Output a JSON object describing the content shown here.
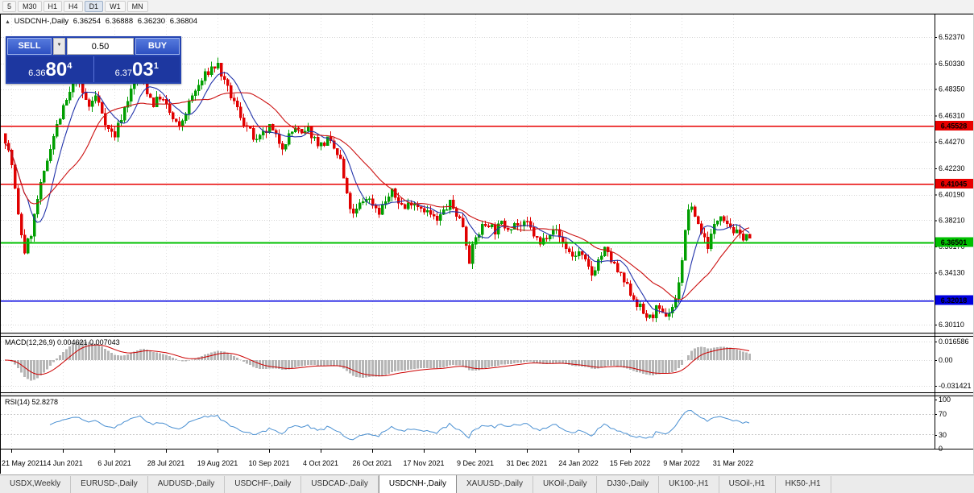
{
  "window": {
    "timeframes": [
      "5",
      "M30",
      "H1",
      "H4",
      "D1",
      "W1",
      "MN"
    ],
    "active_timeframe": "D1"
  },
  "chart": {
    "marker": "▲",
    "symbol_title": "USDCNH-,Daily",
    "open": "6.36254",
    "high": "6.36888",
    "low": "6.36230",
    "close": "6.36804"
  },
  "trade_panel": {
    "sell_label": "SELL",
    "buy_label": "BUY",
    "volume_value": "0.50",
    "spin_down_glyph": "▼",
    "sell_price": {
      "small": "6.36",
      "big": "80",
      "sup": "4"
    },
    "buy_price": {
      "small": "6.37",
      "big": "03",
      "sup": "1"
    }
  },
  "indicator_labels": {
    "macd": "MACD(12,26,9) 0.004621 0.007043",
    "rsi": "RSI(14) 52.8278"
  },
  "axes": {
    "price_labels": [
      "6.52370",
      "6.50330",
      "6.48350",
      "6.46310",
      "6.44270",
      "6.42230",
      "6.40190",
      "6.38210",
      "6.36170",
      "6.34130",
      "6.32090",
      "6.30110"
    ],
    "macd_labels": [
      "0.016586",
      "0.00",
      "-0.031421"
    ],
    "rsi_labels": [
      "100",
      "70",
      "30",
      "0"
    ],
    "date_labels": [
      "21 May 2021",
      "14 Jun 2021",
      "6 Jul 2021",
      "28 Jul 2021",
      "19 Aug 2021",
      "10 Sep 2021",
      "4 Oct 2021",
      "26 Oct 2021",
      "17 Nov 2021",
      "9 Dec 2021",
      "31 Dec 2021",
      "24 Jan 2022",
      "15 Feb 2022",
      "9 Mar 2022",
      "31 Mar 2022"
    ]
  },
  "tabs": [
    "USDX,Weekly",
    "EURUSD-,Daily",
    "AUDUSD-,Daily",
    "USDCHF-,Daily",
    "USDCAD-,Daily",
    "USDCNH-,Daily",
    "XAUUSD-,Daily",
    "UKOil-,Daily",
    "DJ30-,Daily",
    "UK100-,H1",
    "USOil-,H1",
    "HK50-,H1"
  ],
  "active_tab": "USDCNH-,Daily",
  "chart_data": {
    "type": "candlestick",
    "symbol": "USDCNH",
    "period": "Daily",
    "visible_bars": 232,
    "y_axis": {
      "min": 6.295,
      "max": 6.535
    },
    "last_close": 6.36804,
    "tick_start": 2,
    "tick_step": 16,
    "price_anchors": [
      [
        0,
        6.445
      ],
      [
        2,
        6.425
      ],
      [
        4,
        6.385
      ],
      [
        6,
        6.358
      ],
      [
        8,
        6.372
      ],
      [
        10,
        6.398
      ],
      [
        12,
        6.418
      ],
      [
        14,
        6.44
      ],
      [
        16,
        6.455
      ],
      [
        18,
        6.468
      ],
      [
        20,
        6.48
      ],
      [
        22,
        6.492
      ],
      [
        24,
        6.48
      ],
      [
        26,
        6.47
      ],
      [
        28,
        6.478
      ],
      [
        30,
        6.466
      ],
      [
        32,
        6.452
      ],
      [
        34,
        6.448
      ],
      [
        36,
        6.462
      ],
      [
        38,
        6.476
      ],
      [
        40,
        6.488
      ],
      [
        42,
        6.496
      ],
      [
        44,
        6.482
      ],
      [
        46,
        6.472
      ],
      [
        48,
        6.478
      ],
      [
        50,
        6.47
      ],
      [
        52,
        6.46
      ],
      [
        54,
        6.453
      ],
      [
        56,
        6.466
      ],
      [
        58,
        6.478
      ],
      [
        60,
        6.486
      ],
      [
        62,
        6.494
      ],
      [
        64,
        6.5
      ],
      [
        66,
        6.502
      ],
      [
        68,
        6.488
      ],
      [
        70,
        6.478
      ],
      [
        72,
        6.468
      ],
      [
        74,
        6.458
      ],
      [
        76,
        6.45
      ],
      [
        78,
        6.442
      ],
      [
        80,
        6.448
      ],
      [
        82,
        6.454
      ],
      [
        84,
        6.446
      ],
      [
        86,
        6.44
      ],
      [
        88,
        6.447
      ],
      [
        90,
        6.454
      ],
      [
        92,
        6.447
      ],
      [
        94,
        6.452
      ],
      [
        96,
        6.445
      ],
      [
        98,
        6.44
      ],
      [
        100,
        6.444
      ],
      [
        102,
        6.437
      ],
      [
        104,
        6.428
      ],
      [
        106,
        6.4
      ],
      [
        108,
        6.385
      ],
      [
        110,
        6.394
      ],
      [
        112,
        6.4
      ],
      [
        114,
        6.395
      ],
      [
        116,
        6.389
      ],
      [
        118,
        6.397
      ],
      [
        120,
        6.403
      ],
      [
        122,
        6.397
      ],
      [
        124,
        6.391
      ],
      [
        126,
        6.397
      ],
      [
        128,
        6.394
      ],
      [
        130,
        6.391
      ],
      [
        132,
        6.386
      ],
      [
        134,
        6.381
      ],
      [
        136,
        6.389
      ],
      [
        138,
        6.395
      ],
      [
        140,
        6.387
      ],
      [
        142,
        6.378
      ],
      [
        144,
        6.352
      ],
      [
        146,
        6.368
      ],
      [
        148,
        6.377
      ],
      [
        150,
        6.38
      ],
      [
        152,
        6.374
      ],
      [
        154,
        6.379
      ],
      [
        156,
        6.377
      ],
      [
        158,
        6.38
      ],
      [
        160,
        6.377
      ],
      [
        162,
        6.379
      ],
      [
        164,
        6.371
      ],
      [
        166,
        6.363
      ],
      [
        168,
        6.371
      ],
      [
        170,
        6.377
      ],
      [
        172,
        6.369
      ],
      [
        174,
        6.361
      ],
      [
        176,
        6.354
      ],
      [
        178,
        6.357
      ],
      [
        180,
        6.349
      ],
      [
        182,
        6.34
      ],
      [
        184,
        6.351
      ],
      [
        186,
        6.359
      ],
      [
        188,
        6.351
      ],
      [
        190,
        6.342
      ],
      [
        192,
        6.334
      ],
      [
        194,
        6.326
      ],
      [
        196,
        6.318
      ],
      [
        198,
        6.31
      ],
      [
        200,
        6.306
      ],
      [
        202,
        6.313
      ],
      [
        204,
        6.308
      ],
      [
        206,
        6.311
      ],
      [
        208,
        6.32
      ],
      [
        210,
        6.352
      ],
      [
        212,
        6.392
      ],
      [
        214,
        6.386
      ],
      [
        216,
        6.373
      ],
      [
        218,
        6.363
      ],
      [
        220,
        6.377
      ],
      [
        222,
        6.388
      ],
      [
        224,
        6.381
      ],
      [
        226,
        6.374
      ],
      [
        228,
        6.369
      ],
      [
        230,
        6.371
      ],
      [
        231,
        6.368
      ]
    ],
    "levels": [
      {
        "price": 6.45528,
        "label": "6.45528",
        "color": "#e80000",
        "width": 1.5
      },
      {
        "price": 6.41045,
        "label": "6.41045",
        "color": "#e80000",
        "width": 1.5
      },
      {
        "price": 6.36501,
        "label": "6.36501",
        "color": "#00c000",
        "width": 2
      },
      {
        "price": 6.32018,
        "label": "6.32018",
        "color": "#0000e0",
        "width": 1.5
      }
    ],
    "overlays": [
      {
        "name": "MA fast",
        "type": "sma",
        "period": 8,
        "color": "#2233aa"
      },
      {
        "name": "MA slow",
        "type": "sma",
        "period": 21,
        "color": "#cc1111"
      }
    ],
    "indicators": [
      {
        "name": "MACD",
        "params": "12,26,9",
        "values": [
          "0.004621",
          "0.007043"
        ],
        "scale_labels": [
          "0.016586",
          "0.00",
          "-0.031421"
        ]
      },
      {
        "name": "RSI",
        "params": "14",
        "value": "52.8278",
        "levels": [
          70,
          30
        ]
      }
    ],
    "colors": {
      "up": "#009e00",
      "down": "#e00000",
      "grid": "#d6d6d6",
      "macd_hist": "#b6b6b6",
      "macd_signal": "#cc0000",
      "rsi_line": "#4a90d2",
      "level_badge_text": "#ffffff"
    }
  }
}
